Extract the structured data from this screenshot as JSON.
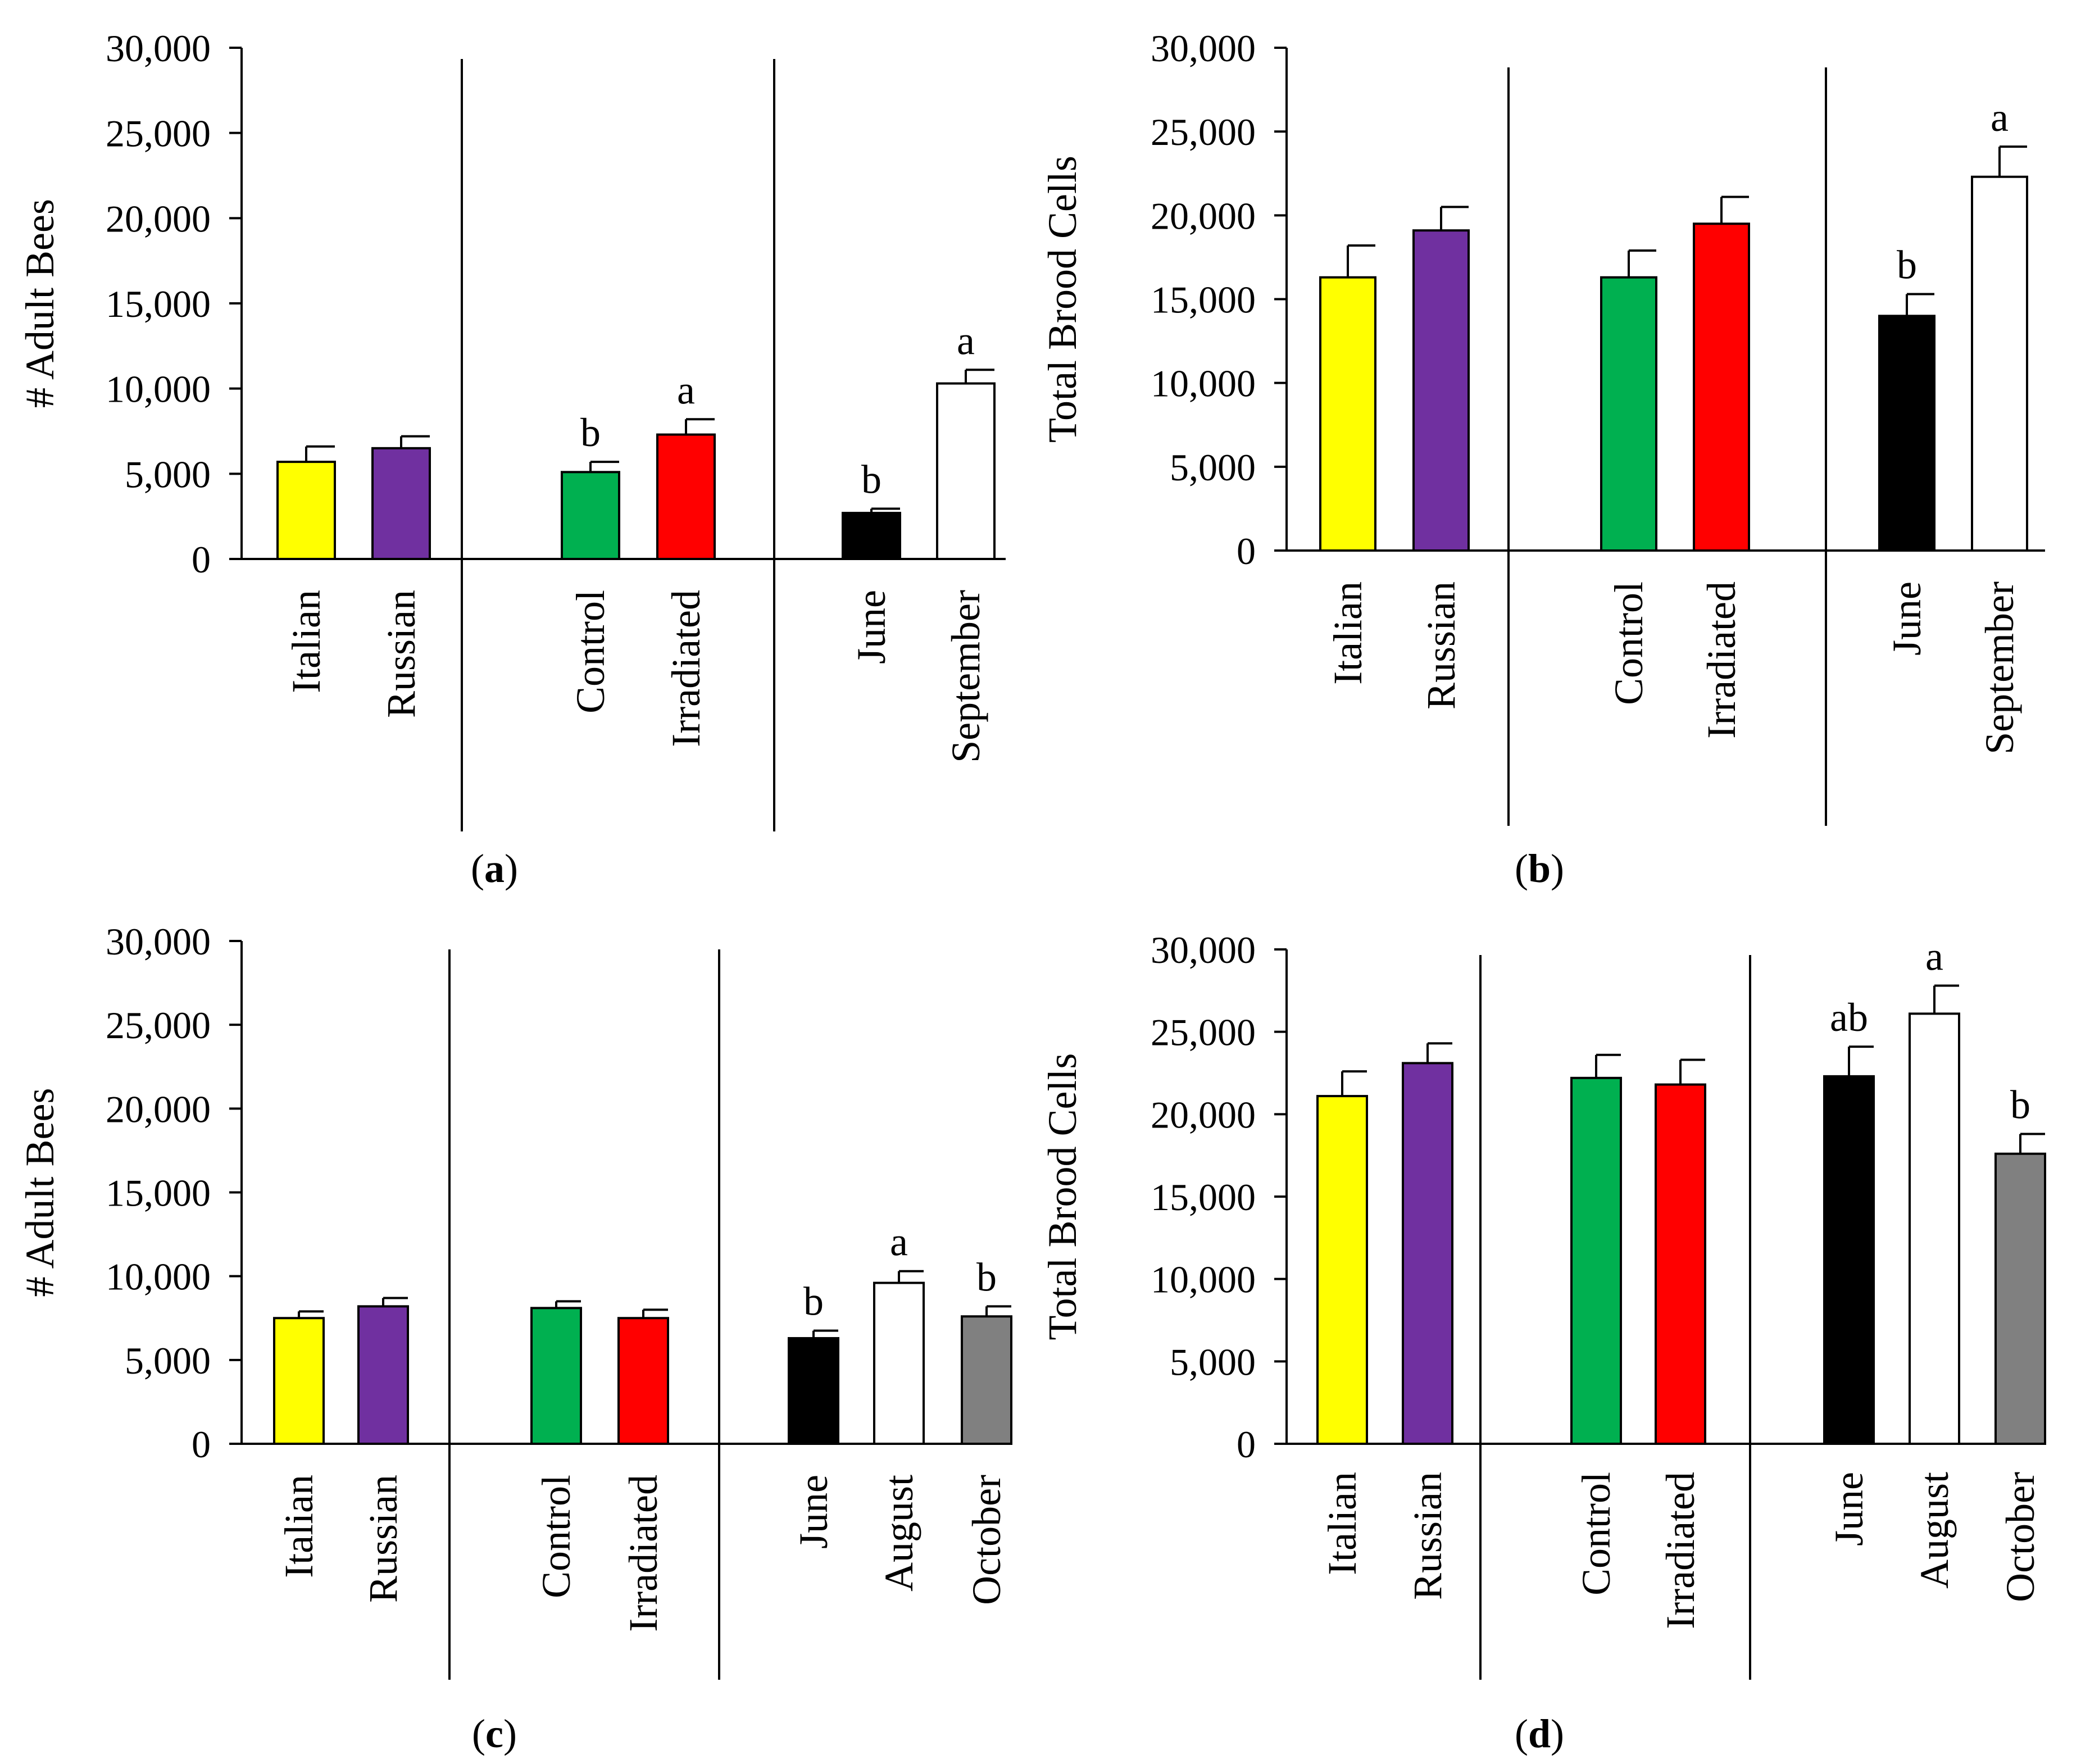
{
  "colors": {
    "yellow": "#ffff00",
    "purple": "#7030a0",
    "green": "#00b050",
    "red": "#ff0000",
    "black": "#000000",
    "white": "#ffffff",
    "gray": "#808080"
  },
  "chart_data": [
    {
      "type": "bar",
      "panel_label": "a",
      "ylabel": "# Adult Bees",
      "ylim": [
        0,
        30000
      ],
      "yticks": [
        "0",
        "5,000",
        "10,000",
        "15,000",
        "20,000",
        "25,000",
        "30,000"
      ],
      "groups": [
        {
          "bars": [
            {
              "category": "Italian",
              "value": 5700,
              "error": 900,
              "letter": "",
              "color": "yellow"
            },
            {
              "category": "Russian",
              "value": 6500,
              "error": 700,
              "letter": "",
              "color": "purple"
            }
          ]
        },
        {
          "bars": [
            {
              "category": "Control",
              "value": 5100,
              "error": 600,
              "letter": "b",
              "color": "green"
            },
            {
              "category": "Irradiated",
              "value": 7300,
              "error": 900,
              "letter": "a",
              "color": "red"
            }
          ]
        },
        {
          "bars": [
            {
              "category": "June",
              "value": 2700,
              "error": 250,
              "letter": "b",
              "color": "black"
            },
            {
              "category": "September",
              "value": 10300,
              "error": 800,
              "letter": "a",
              "color": "white"
            }
          ]
        }
      ]
    },
    {
      "type": "bar",
      "panel_label": "b",
      "ylabel": "Total Brood Cells",
      "ylim": [
        0,
        30000
      ],
      "yticks": [
        "0",
        "5,000",
        "10,000",
        "15,000",
        "20,000",
        "25,000",
        "30,000"
      ],
      "groups": [
        {
          "bars": [
            {
              "category": "Italian",
              "value": 16300,
              "error": 1900,
              "letter": "",
              "color": "yellow"
            },
            {
              "category": "Russian",
              "value": 19100,
              "error": 1400,
              "letter": "",
              "color": "purple"
            }
          ]
        },
        {
          "bars": [
            {
              "category": "Control",
              "value": 16300,
              "error": 1600,
              "letter": "",
              "color": "green"
            },
            {
              "category": "Irradiated",
              "value": 19500,
              "error": 1600,
              "letter": "",
              "color": "red"
            }
          ]
        },
        {
          "bars": [
            {
              "category": "June",
              "value": 14000,
              "error": 1300,
              "letter": "b",
              "color": "black"
            },
            {
              "category": "September",
              "value": 22300,
              "error": 1800,
              "letter": "a",
              "color": "white"
            }
          ]
        }
      ]
    },
    {
      "type": "bar",
      "panel_label": "c",
      "ylabel": "# Adult Bees",
      "ylim": [
        0,
        30000
      ],
      "yticks": [
        "0",
        "5,000",
        "10,000",
        "15,000",
        "20,000",
        "25,000",
        "30,000"
      ],
      "groups": [
        {
          "bars": [
            {
              "category": "Italian",
              "value": 7500,
              "error": 400,
              "letter": "",
              "color": "yellow"
            },
            {
              "category": "Russian",
              "value": 8200,
              "error": 500,
              "letter": "",
              "color": "purple"
            }
          ]
        },
        {
          "bars": [
            {
              "category": "Control",
              "value": 8100,
              "error": 400,
              "letter": "",
              "color": "green"
            },
            {
              "category": "Irradiated",
              "value": 7500,
              "error": 500,
              "letter": "",
              "color": "red"
            }
          ]
        },
        {
          "bars": [
            {
              "category": "June",
              "value": 6300,
              "error": 450,
              "letter": "b",
              "color": "black"
            },
            {
              "category": "August",
              "value": 9600,
              "error": 700,
              "letter": "a",
              "color": "white"
            },
            {
              "category": "October",
              "value": 7600,
              "error": 600,
              "letter": "b",
              "color": "gray"
            }
          ]
        }
      ]
    },
    {
      "type": "bar",
      "panel_label": "d",
      "ylabel": "Total Brood Cells",
      "ylim": [
        0,
        30000
      ],
      "yticks": [
        "0",
        "5,000",
        "10,000",
        "15,000",
        "20,000",
        "25,000",
        "30,000"
      ],
      "groups": [
        {
          "bars": [
            {
              "category": "Italian",
              "value": 21100,
              "error": 1500,
              "letter": "",
              "color": "yellow"
            },
            {
              "category": "Russian",
              "value": 23100,
              "error": 1200,
              "letter": "",
              "color": "purple"
            }
          ]
        },
        {
          "bars": [
            {
              "category": "Control",
              "value": 22200,
              "error": 1400,
              "letter": "",
              "color": "green"
            },
            {
              "category": "Irradiated",
              "value": 21800,
              "error": 1500,
              "letter": "",
              "color": "red"
            }
          ]
        },
        {
          "bars": [
            {
              "category": "June",
              "value": 22300,
              "error": 1800,
              "letter": "ab",
              "color": "black"
            },
            {
              "category": "August",
              "value": 26100,
              "error": 1700,
              "letter": "a",
              "color": "white"
            },
            {
              "category": "October",
              "value": 17600,
              "error": 1200,
              "letter": "b",
              "color": "gray"
            }
          ]
        }
      ]
    }
  ]
}
